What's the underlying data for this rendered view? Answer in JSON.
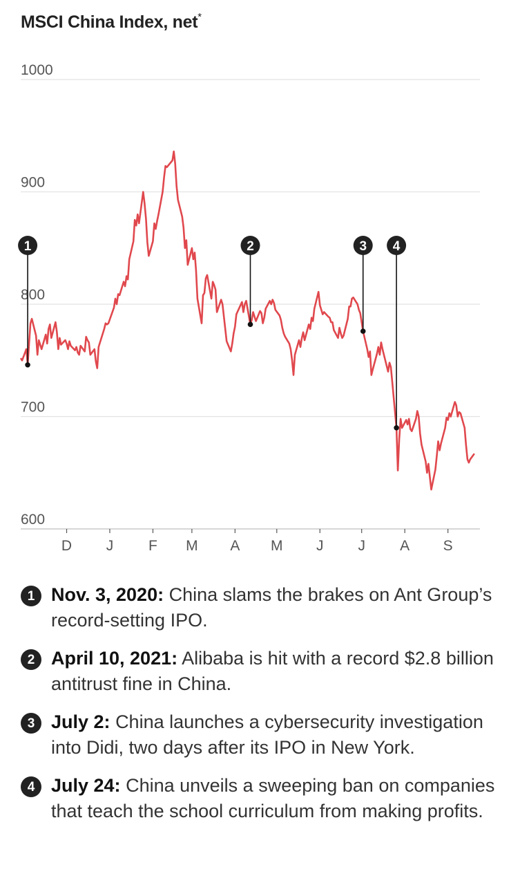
{
  "title": "MSCI China Index, net",
  "title_asterisk": "*",
  "chart_data": {
    "type": "line",
    "ylim": [
      600,
      1000
    ],
    "yticks": [
      1000,
      900,
      800,
      700,
      600
    ],
    "x_range": [
      "2020-10-29",
      "2021-09-24"
    ],
    "xticks": [
      {
        "label": "D",
        "date": "2020-12-01"
      },
      {
        "label": "J",
        "date": "2021-01-01"
      },
      {
        "label": "F",
        "date": "2021-02-01"
      },
      {
        "label": "M",
        "date": "2021-03-01"
      },
      {
        "label": "A",
        "date": "2021-04-01"
      },
      {
        "label": "M",
        "date": "2021-05-01"
      },
      {
        "label": "J",
        "date": "2021-06-01"
      },
      {
        "label": "J",
        "date": "2021-07-01"
      },
      {
        "label": "A",
        "date": "2021-08-01"
      },
      {
        "label": "S",
        "date": "2021-09-01"
      }
    ],
    "line_color": "#e0484d",
    "grid": true,
    "series": [
      {
        "name": "",
        "points": [
          [
            "2020-10-29",
            752
          ],
          [
            "2020-10-30",
            750
          ],
          [
            "2020-11-02",
            760
          ],
          [
            "2020-11-03",
            746
          ],
          [
            "2020-11-04",
            765
          ],
          [
            "2020-11-05",
            783
          ],
          [
            "2020-11-06",
            787
          ],
          [
            "2020-11-09",
            772
          ],
          [
            "2020-11-10",
            755
          ],
          [
            "2020-11-11",
            768
          ],
          [
            "2020-11-12",
            764
          ],
          [
            "2020-11-13",
            760
          ],
          [
            "2020-11-16",
            773
          ],
          [
            "2020-11-17",
            765
          ],
          [
            "2020-11-18",
            778
          ],
          [
            "2020-11-19",
            782
          ],
          [
            "2020-11-20",
            770
          ],
          [
            "2020-11-23",
            784
          ],
          [
            "2020-11-24",
            775
          ],
          [
            "2020-11-25",
            760
          ],
          [
            "2020-11-26",
            770
          ],
          [
            "2020-11-27",
            764
          ],
          [
            "2020-11-30",
            768
          ],
          [
            "2020-12-01",
            765
          ],
          [
            "2020-12-02",
            760
          ],
          [
            "2020-12-03",
            767
          ],
          [
            "2020-12-04",
            763
          ],
          [
            "2020-12-07",
            759
          ],
          [
            "2020-12-08",
            762
          ],
          [
            "2020-12-09",
            757
          ],
          [
            "2020-12-10",
            755
          ],
          [
            "2020-12-11",
            763
          ],
          [
            "2020-12-14",
            758
          ],
          [
            "2020-12-15",
            771
          ],
          [
            "2020-12-16",
            768
          ],
          [
            "2020-12-17",
            766
          ],
          [
            "2020-12-18",
            755
          ],
          [
            "2020-12-21",
            760
          ],
          [
            "2020-12-22",
            749
          ],
          [
            "2020-12-23",
            743
          ],
          [
            "2020-12-24",
            762
          ],
          [
            "2020-12-28",
            778
          ],
          [
            "2020-12-29",
            783
          ],
          [
            "2020-12-30",
            782
          ],
          [
            "2020-12-31",
            783
          ],
          [
            "2021-01-04",
            797
          ],
          [
            "2021-01-05",
            805
          ],
          [
            "2021-01-06",
            800
          ],
          [
            "2021-01-07",
            809
          ],
          [
            "2021-01-08",
            808
          ],
          [
            "2021-01-11",
            820
          ],
          [
            "2021-01-12",
            816
          ],
          [
            "2021-01-13",
            825
          ],
          [
            "2021-01-14",
            822
          ],
          [
            "2021-01-15",
            840
          ],
          [
            "2021-01-18",
            856
          ],
          [
            "2021-01-19",
            875
          ],
          [
            "2021-01-20",
            870
          ],
          [
            "2021-01-21",
            880
          ],
          [
            "2021-01-22",
            872
          ],
          [
            "2021-01-25",
            900
          ],
          [
            "2021-01-26",
            890
          ],
          [
            "2021-01-27",
            876
          ],
          [
            "2021-01-28",
            855
          ],
          [
            "2021-01-29",
            843
          ],
          [
            "2021-02-01",
            856
          ],
          [
            "2021-02-02",
            872
          ],
          [
            "2021-02-03",
            867
          ],
          [
            "2021-02-04",
            874
          ],
          [
            "2021-02-05",
            880
          ],
          [
            "2021-02-08",
            900
          ],
          [
            "2021-02-09",
            913
          ],
          [
            "2021-02-10",
            923
          ],
          [
            "2021-02-11",
            922
          ],
          [
            "2021-02-15",
            928
          ],
          [
            "2021-02-16",
            936
          ],
          [
            "2021-02-17",
            925
          ],
          [
            "2021-02-18",
            905
          ],
          [
            "2021-02-19",
            893
          ],
          [
            "2021-02-22",
            878
          ],
          [
            "2021-02-23",
            868
          ],
          [
            "2021-02-24",
            850
          ],
          [
            "2021-02-25",
            857
          ],
          [
            "2021-02-26",
            835
          ],
          [
            "2021-03-01",
            850
          ],
          [
            "2021-03-02",
            840
          ],
          [
            "2021-03-03",
            846
          ],
          [
            "2021-03-04",
            830
          ],
          [
            "2021-03-05",
            805
          ],
          [
            "2021-03-08",
            783
          ],
          [
            "2021-03-09",
            808
          ],
          [
            "2021-03-10",
            810
          ],
          [
            "2021-03-11",
            823
          ],
          [
            "2021-03-12",
            826
          ],
          [
            "2021-03-15",
            805
          ],
          [
            "2021-03-16",
            820
          ],
          [
            "2021-03-17",
            817
          ],
          [
            "2021-03-18",
            813
          ],
          [
            "2021-03-19",
            793
          ],
          [
            "2021-03-22",
            804
          ],
          [
            "2021-03-23",
            800
          ],
          [
            "2021-03-24",
            789
          ],
          [
            "2021-03-25",
            778
          ],
          [
            "2021-03-26",
            767
          ],
          [
            "2021-03-29",
            758
          ],
          [
            "2021-03-30",
            765
          ],
          [
            "2021-03-31",
            774
          ],
          [
            "2021-04-01",
            780
          ],
          [
            "2021-04-02",
            791
          ],
          [
            "2021-04-06",
            802
          ],
          [
            "2021-04-07",
            793
          ],
          [
            "2021-04-08",
            800
          ],
          [
            "2021-04-09",
            803
          ],
          [
            "2021-04-12",
            782
          ],
          [
            "2021-04-13",
            786
          ],
          [
            "2021-04-14",
            793
          ],
          [
            "2021-04-15",
            789
          ],
          [
            "2021-04-16",
            785
          ],
          [
            "2021-04-19",
            794
          ],
          [
            "2021-04-20",
            792
          ],
          [
            "2021-04-21",
            783
          ],
          [
            "2021-04-22",
            788
          ],
          [
            "2021-04-23",
            796
          ],
          [
            "2021-04-26",
            803
          ],
          [
            "2021-04-27",
            800
          ],
          [
            "2021-04-28",
            804
          ],
          [
            "2021-04-29",
            801
          ],
          [
            "2021-04-30",
            795
          ],
          [
            "2021-05-03",
            790
          ],
          [
            "2021-05-04",
            786
          ],
          [
            "2021-05-05",
            779
          ],
          [
            "2021-05-06",
            774
          ],
          [
            "2021-05-07",
            771
          ],
          [
            "2021-05-10",
            765
          ],
          [
            "2021-05-11",
            760
          ],
          [
            "2021-05-12",
            750
          ],
          [
            "2021-05-13",
            737
          ],
          [
            "2021-05-14",
            755
          ],
          [
            "2021-05-17",
            768
          ],
          [
            "2021-05-18",
            762
          ],
          [
            "2021-05-19",
            770
          ],
          [
            "2021-05-20",
            775
          ],
          [
            "2021-05-21",
            768
          ],
          [
            "2021-05-24",
            782
          ],
          [
            "2021-05-25",
            778
          ],
          [
            "2021-05-26",
            788
          ],
          [
            "2021-05-27",
            785
          ],
          [
            "2021-05-28",
            796
          ],
          [
            "2021-05-31",
            811
          ],
          [
            "2021-06-01",
            799
          ],
          [
            "2021-06-02",
            795
          ],
          [
            "2021-06-03",
            791
          ],
          [
            "2021-06-04",
            793
          ],
          [
            "2021-06-07",
            789
          ],
          [
            "2021-06-08",
            788
          ],
          [
            "2021-06-09",
            784
          ],
          [
            "2021-06-10",
            784
          ],
          [
            "2021-06-11",
            777
          ],
          [
            "2021-06-14",
            770
          ],
          [
            "2021-06-15",
            779
          ],
          [
            "2021-06-16",
            774
          ],
          [
            "2021-06-17",
            770
          ],
          [
            "2021-06-18",
            772
          ],
          [
            "2021-06-21",
            787
          ],
          [
            "2021-06-22",
            798
          ],
          [
            "2021-06-23",
            798
          ],
          [
            "2021-06-24",
            805
          ],
          [
            "2021-06-25",
            806
          ],
          [
            "2021-06-28",
            800
          ],
          [
            "2021-06-29",
            795
          ],
          [
            "2021-06-30",
            792
          ],
          [
            "2021-07-02",
            776
          ],
          [
            "2021-07-05",
            760
          ],
          [
            "2021-07-06",
            753
          ],
          [
            "2021-07-07",
            758
          ],
          [
            "2021-07-08",
            737
          ],
          [
            "2021-07-09",
            742
          ],
          [
            "2021-07-12",
            756
          ],
          [
            "2021-07-13",
            762
          ],
          [
            "2021-07-14",
            755
          ],
          [
            "2021-07-15",
            766
          ],
          [
            "2021-07-16",
            760
          ],
          [
            "2021-07-19",
            745
          ],
          [
            "2021-07-20",
            740
          ],
          [
            "2021-07-21",
            748
          ],
          [
            "2021-07-22",
            744
          ],
          [
            "2021-07-23",
            731
          ],
          [
            "2021-07-26",
            690
          ],
          [
            "2021-07-27",
            652
          ],
          [
            "2021-07-28",
            680
          ],
          [
            "2021-07-29",
            698
          ],
          [
            "2021-07-30",
            690
          ],
          [
            "2021-08-02",
            697
          ],
          [
            "2021-08-03",
            693
          ],
          [
            "2021-08-04",
            698
          ],
          [
            "2021-08-05",
            689
          ],
          [
            "2021-08-06",
            687
          ],
          [
            "2021-08-09",
            698
          ],
          [
            "2021-08-10",
            705
          ],
          [
            "2021-08-11",
            700
          ],
          [
            "2021-08-12",
            685
          ],
          [
            "2021-08-13",
            675
          ],
          [
            "2021-08-16",
            660
          ],
          [
            "2021-08-17",
            650
          ],
          [
            "2021-08-18",
            658
          ],
          [
            "2021-08-19",
            646
          ],
          [
            "2021-08-20",
            635
          ],
          [
            "2021-08-23",
            653
          ],
          [
            "2021-08-24",
            665
          ],
          [
            "2021-08-25",
            678
          ],
          [
            "2021-08-26",
            670
          ],
          [
            "2021-08-27",
            676
          ],
          [
            "2021-08-30",
            690
          ],
          [
            "2021-08-31",
            699
          ],
          [
            "2021-09-01",
            697
          ],
          [
            "2021-09-02",
            703
          ],
          [
            "2021-09-03",
            700
          ],
          [
            "2021-09-06",
            713
          ],
          [
            "2021-09-07",
            710
          ],
          [
            "2021-09-08",
            700
          ],
          [
            "2021-09-09",
            704
          ],
          [
            "2021-09-10",
            703
          ],
          [
            "2021-09-13",
            690
          ],
          [
            "2021-09-14",
            675
          ],
          [
            "2021-09-15",
            662
          ],
          [
            "2021-09-16",
            659
          ],
          [
            "2021-09-17",
            662
          ],
          [
            "2021-09-20",
            667
          ]
        ]
      }
    ],
    "annotations": [
      {
        "label": "1",
        "date": "2020-11-03",
        "value": 746
      },
      {
        "label": "2",
        "date": "2021-04-12",
        "value": 782
      },
      {
        "label": "3",
        "date": "2021-07-02",
        "value": 776
      },
      {
        "label": "4",
        "date": "2021-07-26",
        "value": 690
      }
    ]
  },
  "notes": [
    {
      "badge": "1",
      "date": "Nov. 3, 2020:",
      "text": "China slams the brakes on Ant Group’s record-setting IPO."
    },
    {
      "badge": "2",
      "date": "April 10, 2021:",
      "text": "Alibaba is hit with a record $2.8 billion antitrust fine in China."
    },
    {
      "badge": "3",
      "date": "July 2:",
      "text": "China launches a cybersecurity investigation into Didi, two days after its IPO in New York."
    },
    {
      "badge": "4",
      "date": "July 24:",
      "text": "China unveils a sweeping ban on companies that teach the school curriculum from making profits."
    }
  ]
}
